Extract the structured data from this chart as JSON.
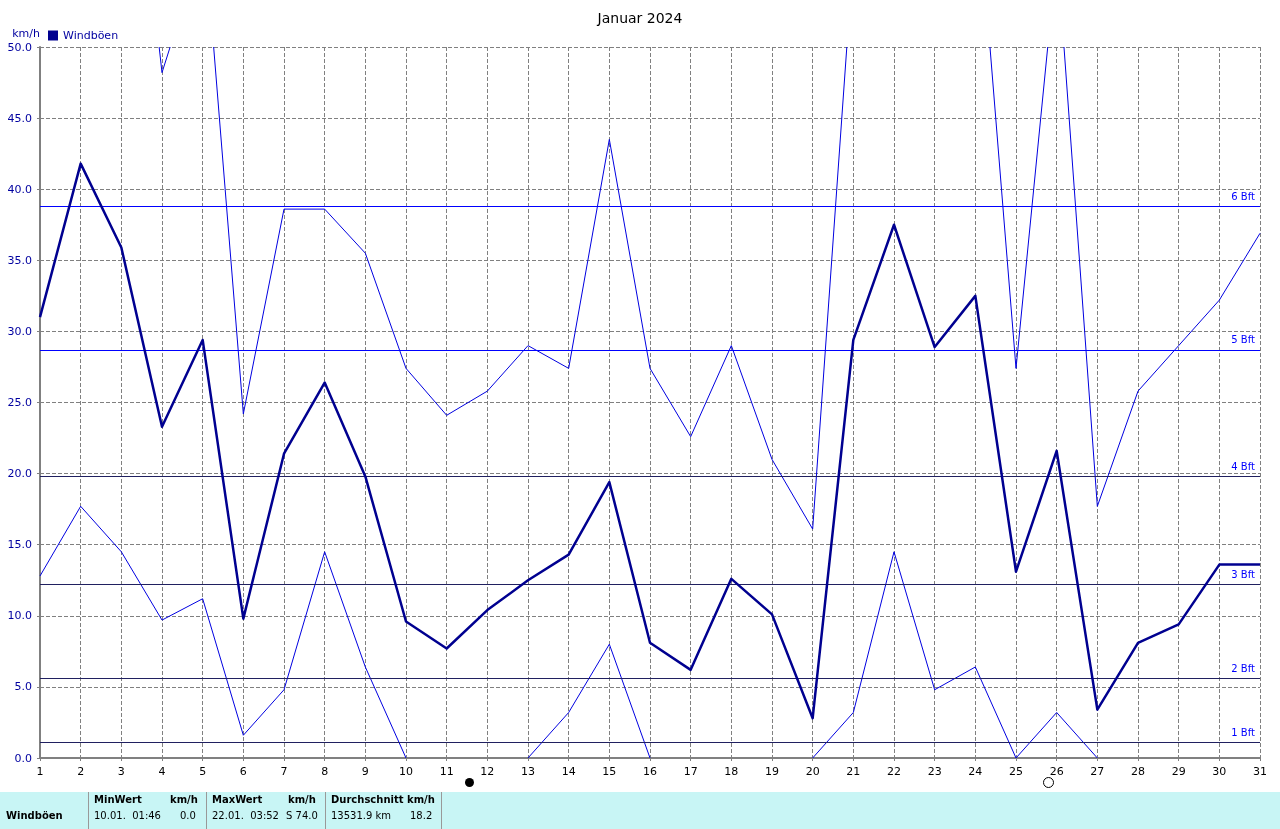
{
  "chart_data": {
    "type": "line",
    "title": "Januar 2024",
    "ylabel": "km/h",
    "x": [
      1,
      2,
      3,
      4,
      5,
      6,
      7,
      8,
      9,
      10,
      11,
      12,
      13,
      14,
      15,
      16,
      17,
      18,
      19,
      20,
      21,
      22,
      23,
      24,
      25,
      26,
      27,
      28,
      29,
      30,
      31
    ],
    "series": [
      {
        "name": "Windböen",
        "color": "#000090",
        "values": [
          31.0,
          41.8,
          35.9,
          23.3,
          29.4,
          9.8,
          21.4,
          26.4,
          19.8,
          9.6,
          7.7,
          10.4,
          12.5,
          14.3,
          19.4,
          8.1,
          6.2,
          12.6,
          10.1,
          2.8,
          29.4,
          37.5,
          28.9,
          32.5,
          13.1,
          21.6,
          3.4,
          8.1,
          9.4,
          13.6,
          13.6
        ]
      },
      {
        "color": "#0000e0",
        "x": [
          3.93,
          4,
          4.2,
          4.5,
          5.27,
          6,
          7,
          8,
          9,
          10,
          11,
          12,
          13,
          14,
          15,
          16,
          17,
          18,
          19,
          20,
          20.84,
          22.5,
          24.36,
          25,
          25.78,
          26,
          26.18,
          27,
          28,
          29,
          30,
          31
        ],
        "values": [
          50,
          48.2,
          50,
          null,
          50,
          24.2,
          38.6,
          38.6,
          35.5,
          27.4,
          24.1,
          25.8,
          29.0,
          27.4,
          43.5,
          27.4,
          22.6,
          29.0,
          21.0,
          16.1,
          50,
          null,
          50,
          27.4,
          50,
          null,
          50,
          17.7,
          25.8,
          29.0,
          32.2,
          36.9
        ]
      },
      {
        "color": "#0000e0",
        "values": [
          12.8,
          17.7,
          14.5,
          9.7,
          11.2,
          1.6,
          4.8,
          14.5,
          6.4,
          0,
          null,
          null,
          0,
          3.2,
          8.0,
          0,
          null,
          null,
          null,
          0,
          3.2,
          14.5,
          4.8,
          6.4,
          0,
          3.2,
          0,
          null,
          null,
          null,
          null
        ]
      }
    ],
    "xlim": [
      1,
      31
    ],
    "xticks": [
      1,
      2,
      3,
      4,
      5,
      6,
      7,
      8,
      9,
      10,
      11,
      12,
      13,
      14,
      15,
      16,
      17,
      18,
      19,
      20,
      21,
      22,
      23,
      24,
      25,
      26,
      27,
      28,
      29,
      30,
      31
    ],
    "ylim": [
      0,
      50
    ],
    "yticks": [
      {
        "value": 0,
        "label": "0.0"
      },
      {
        "value": 5,
        "label": "5.0"
      },
      {
        "value": 10,
        "label": "10.0"
      },
      {
        "value": 15,
        "label": "15.0"
      },
      {
        "value": 20,
        "label": "20.0"
      },
      {
        "value": 25,
        "label": "25.0"
      },
      {
        "value": 30,
        "label": "30.0"
      },
      {
        "value": 35,
        "label": "35.0"
      },
      {
        "value": 40,
        "label": "40.0"
      },
      {
        "value": 45,
        "label": "45.0"
      },
      {
        "value": 50,
        "label": "50.0"
      }
    ],
    "ref_lines": [
      {
        "axis": "y",
        "value": 1.1,
        "label": "1 Bft",
        "color": "#202060"
      },
      {
        "axis": "y",
        "value": 5.6,
        "label": "2 Bft",
        "color": "#202060"
      },
      {
        "axis": "y",
        "value": 12.2,
        "label": "3 Bft",
        "color": "#202060"
      },
      {
        "axis": "y",
        "value": 19.8,
        "label": "4 Bft",
        "color": "#202060"
      },
      {
        "axis": "y",
        "value": 28.7,
        "label": "5 Bft",
        "color": "#0000ff"
      },
      {
        "axis": "y",
        "value": 38.8,
        "label": "6 Bft",
        "color": "#0000ff"
      }
    ],
    "annotations": [
      "Windböen",
      "MinWert",
      "km/h",
      "10.01.  01:46",
      "0.0",
      "MaxWert",
      "km/h",
      "22.01.  03:52",
      "S 74.0",
      "Durchschnitt km/h",
      "13531.9 km",
      "18.2"
    ],
    "grid": true,
    "legend": "top left",
    "marker": "none",
    "line_style": "solid"
  }
}
